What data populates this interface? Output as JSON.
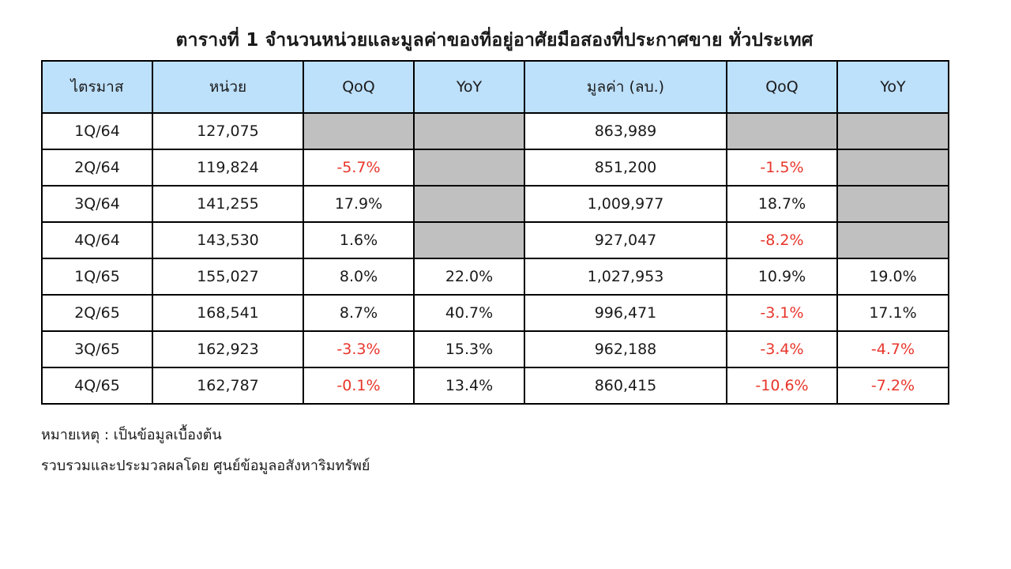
{
  "title": "ตารางที่ 1 จำนวนหน่วยและมูลค่าของที่อยู่อาศัยมือสองที่ประกาศขาย ทั่วประเทศ",
  "colors": {
    "header_bg": "#bde0fb",
    "negative": "#e8352b",
    "not_available": "#c0c0c0",
    "border": "#000000"
  },
  "chart_data": {
    "type": "table",
    "title": "ตารางที่ 1 จำนวนหน่วยและมูลค่าของที่อยู่อาศัยมือสองที่ประกาศขาย ทั่วประเทศ",
    "columns": [
      "ไตรมาส",
      "หน่วย",
      "QoQ",
      "YoY",
      "มูลค่า (ลบ.)",
      "QoQ",
      "YoY"
    ],
    "rows": [
      [
        "1Q/64",
        "127,075",
        "",
        "",
        "863,989",
        "",
        ""
      ],
      [
        "2Q/64",
        "119,824",
        "-5.7%",
        "",
        "851,200",
        "-1.5%",
        ""
      ],
      [
        "3Q/64",
        "141,255",
        "17.9%",
        "",
        "1,009,977",
        "18.7%",
        ""
      ],
      [
        "4Q/64",
        "143,530",
        "1.6%",
        "",
        "927,047",
        "-8.2%",
        ""
      ],
      [
        "1Q/65",
        "155,027",
        "8.0%",
        "22.0%",
        "1,027,953",
        "10.9%",
        "19.0%"
      ],
      [
        "2Q/65",
        "168,541",
        "8.7%",
        "40.7%",
        "996,471",
        "-3.1%",
        "17.1%"
      ],
      [
        "3Q/65",
        "162,923",
        "-3.3%",
        "15.3%",
        "962,188",
        "-3.4%",
        "-4.7%"
      ],
      [
        "4Q/65",
        "162,787",
        "-0.1%",
        "13.4%",
        "860,415",
        "-10.6%",
        "-7.2%"
      ]
    ]
  },
  "notes": [
    "หมายเหตุ : เป็นข้อมูลเบื้องต้น",
    "รวบรวมและประมวลผลโดย ศูนย์ข้อมูลอสังหาริมทรัพย์"
  ]
}
